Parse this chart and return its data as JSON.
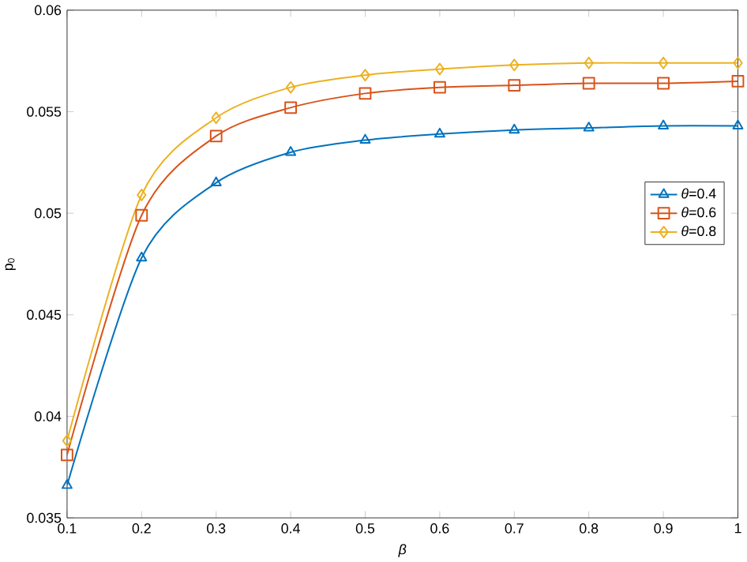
{
  "chart_data": {
    "type": "line",
    "xlabel": "*β*",
    "ylabel": "p$_{0}$",
    "x": [
      0.1,
      0.2,
      0.3,
      0.4,
      0.5,
      0.6,
      0.7,
      0.8,
      0.9,
      1.0
    ],
    "series": [
      {
        "name": "*θ*=0.4",
        "color": "#0072bd",
        "marker": "triangle",
        "values": [
          0.0366,
          0.0478,
          0.0515,
          0.053,
          0.0536,
          0.0539,
          0.0541,
          0.0542,
          0.0543,
          0.0543
        ]
      },
      {
        "name": "*θ*=0.6",
        "color": "#d95319",
        "marker": "square",
        "values": [
          0.0381,
          0.0499,
          0.0538,
          0.0552,
          0.0559,
          0.0562,
          0.0563,
          0.0564,
          0.0564,
          0.0565
        ]
      },
      {
        "name": "*θ*=0.8",
        "color": "#edb120",
        "marker": "diamond",
        "values": [
          0.0388,
          0.0509,
          0.0547,
          0.0562,
          0.0568,
          0.0571,
          0.0573,
          0.0574,
          0.0574,
          0.0574
        ]
      }
    ],
    "xlim": [
      0.1,
      1
    ],
    "xticks": [
      0.1,
      0.2,
      0.3,
      0.4,
      0.5,
      0.6,
      0.7,
      0.8,
      0.9,
      1
    ],
    "ylim": [
      0.035,
      0.06
    ],
    "yticks": [
      0.035,
      0.04,
      0.045,
      0.05,
      0.055,
      0.06
    ],
    "grid": false,
    "legend": "right",
    "line_style": "solid"
  }
}
